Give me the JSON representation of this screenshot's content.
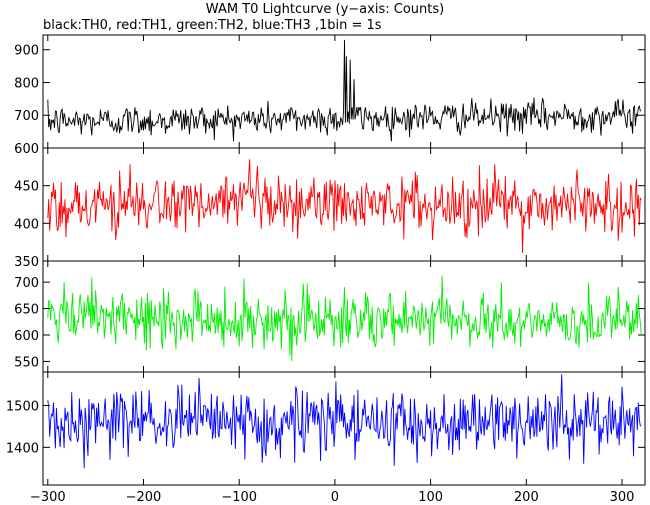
{
  "title": "WAM T0 Lightcurve (y−axis: Counts)",
  "subtitle": "black:TH0, red:TH1, green:TH2, blue:TH3 ,1bin = 1s",
  "chart_data": {
    "type": "line",
    "title": "WAM T0 Lightcurve (y−axis: Counts)",
    "subtitle": "black:TH0, red:TH1, green:TH2, blue:TH3 ,1bin = 1s",
    "xlim": [
      -305,
      324
    ],
    "xticks": [
      -300,
      -200,
      -100,
      0,
      100,
      200,
      300
    ],
    "xtick_labels": [
      "−300",
      "−200",
      "−100",
      "0",
      "100",
      "200",
      "300"
    ],
    "bin_seconds": 1,
    "grid": false,
    "panels": [
      {
        "name": "TH0",
        "color": "#000000",
        "ylim": [
          600,
          945
        ],
        "yticks": [
          600,
          700,
          800,
          900
        ],
        "baseline": 690,
        "noise_sd": 24,
        "trend_per_s": 0.03,
        "x_start": -300,
        "x_end": 320,
        "features": [
          {
            "x": 10,
            "y": 930
          },
          {
            "x": 12,
            "y": 880
          },
          {
            "x": 16,
            "y": 870
          },
          {
            "x": 20,
            "y": 810
          }
        ],
        "approx_min": 620,
        "approx_max": 930
      },
      {
        "name": "TH1",
        "color": "#ff0000",
        "ylim": [
          350,
          500
        ],
        "yticks": [
          350,
          400,
          450
        ],
        "baseline": 425,
        "noise_sd": 20,
        "trend_per_s": 0.0,
        "x_start": -300,
        "x_end": 320,
        "features": [],
        "approx_min": 352,
        "approx_max": 490
      },
      {
        "name": "TH2",
        "color": "#00ee00",
        "ylim": [
          530,
          740
        ],
        "yticks": [
          550,
          600,
          650,
          700
        ],
        "baseline": 628,
        "noise_sd": 27,
        "trend_per_s": -0.015,
        "x_start": -300,
        "x_end": 320,
        "features": [],
        "approx_min": 532,
        "approx_max": 730
      },
      {
        "name": "TH3",
        "color": "#0000ff",
        "ylim": [
          1310,
          1580
        ],
        "yticks": [
          1400,
          1500
        ],
        "baseline": 1460,
        "noise_sd": 40,
        "trend_per_s": 0.0,
        "x_start": -300,
        "x_end": 320,
        "features": [],
        "approx_min": 1320,
        "approx_max": 1575
      }
    ]
  }
}
